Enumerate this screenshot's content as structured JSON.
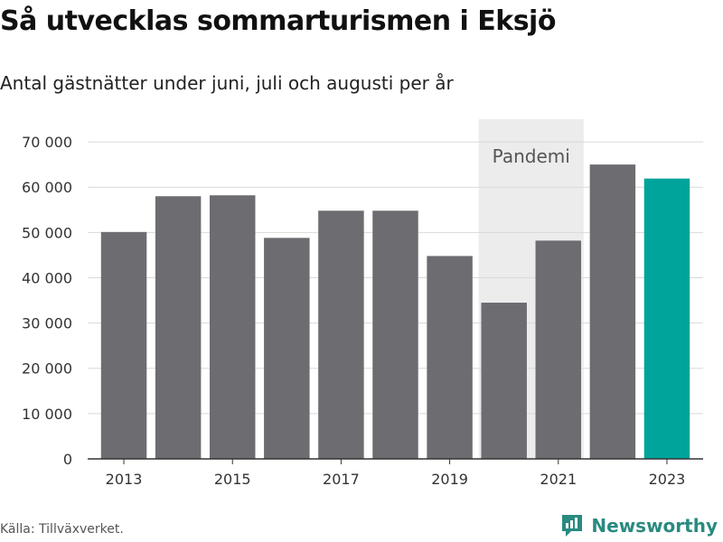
{
  "title": "Så utvecklas sommarturismen i Eksjö",
  "subtitle": "Antal gästnätter under juni, juli och augusti per år",
  "source": "Källa: Tillväxverket.",
  "brand": {
    "name": "Newsworthy",
    "icon": "newsworthy-logo-icon",
    "color": "#2a8a80"
  },
  "chart_data": {
    "type": "bar",
    "title": "Så utvecklas sommarturismen i Eksjö",
    "subtitle": "Antal gästnätter under juni, juli och augusti per år",
    "categories": [
      "2013",
      "2014",
      "2015",
      "2016",
      "2017",
      "2018",
      "2019",
      "2020",
      "2021",
      "2022",
      "2023"
    ],
    "values": [
      50100,
      58000,
      58200,
      48800,
      54800,
      54800,
      44800,
      34500,
      48200,
      65000,
      61900
    ],
    "highlight_category": "2023",
    "xtick_labels": [
      "2013",
      "2015",
      "2017",
      "2019",
      "2021",
      "2023"
    ],
    "ylim": [
      0,
      75000
    ],
    "yticks": [
      0,
      10000,
      20000,
      30000,
      40000,
      50000,
      60000,
      70000
    ],
    "ytick_labels": [
      "0",
      "10 000",
      "20 000",
      "30 000",
      "40 000",
      "50 000",
      "60 000",
      "70 000"
    ],
    "xlabel": "",
    "ylabel": "",
    "grid": true,
    "annotation": {
      "label": "Pandemi",
      "x_start": "2020",
      "x_end": "2021"
    },
    "colors": {
      "bar": "#6d6c71",
      "highlight": "#00a49a",
      "band": "#ececec",
      "grid": "#d9d9d9"
    }
  }
}
